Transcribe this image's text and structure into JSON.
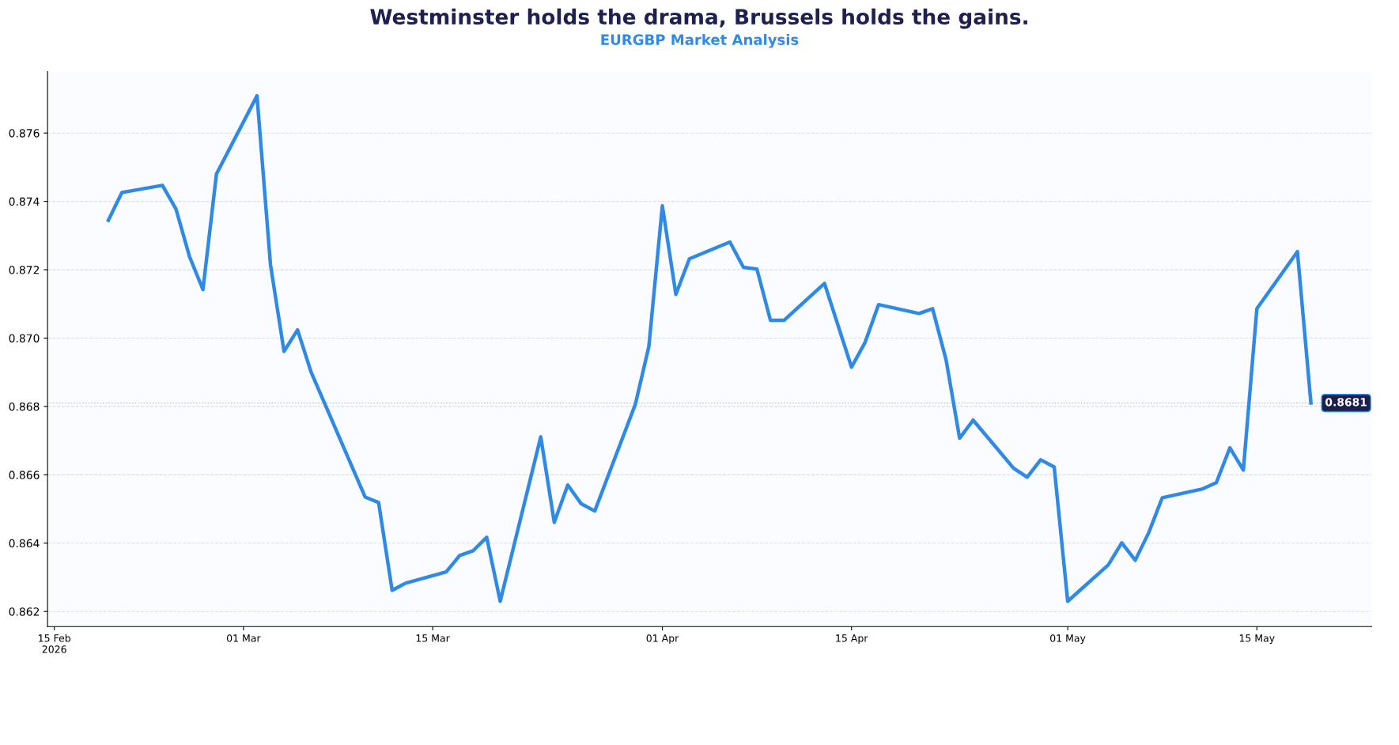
{
  "chart_data": {
    "type": "line",
    "title": "Westminster holds the drama, Brussels holds the gains.",
    "subtitle": "EURGBP Market Analysis",
    "x": [
      "2026-02-19",
      "2026-02-20",
      "2026-02-23",
      "2026-02-24",
      "2026-02-25",
      "2026-02-26",
      "2026-02-27",
      "2026-03-02",
      "2026-03-03",
      "2026-03-04",
      "2026-03-05",
      "2026-03-06",
      "2026-03-10",
      "2026-03-11",
      "2026-03-12",
      "2026-03-13",
      "2026-03-16",
      "2026-03-17",
      "2026-03-18",
      "2026-03-19",
      "2026-03-20",
      "2026-03-23",
      "2026-03-24",
      "2026-03-25",
      "2026-03-26",
      "2026-03-27",
      "2026-03-30",
      "2026-03-31",
      "2026-04-01",
      "2026-04-02",
      "2026-04-03",
      "2026-04-06",
      "2026-04-07",
      "2026-04-08",
      "2026-04-09",
      "2026-04-10",
      "2026-04-13",
      "2026-04-15",
      "2026-04-16",
      "2026-04-17",
      "2026-04-20",
      "2026-04-21",
      "2026-04-22",
      "2026-04-23",
      "2026-04-24",
      "2026-04-27",
      "2026-04-28",
      "2026-04-29",
      "2026-04-30",
      "2026-05-01",
      "2026-05-04",
      "2026-05-05",
      "2026-05-06",
      "2026-05-07",
      "2026-05-08",
      "2026-05-11",
      "2026-05-12",
      "2026-05-13",
      "2026-05-14",
      "2026-05-15",
      "2026-05-18",
      "2026-05-19"
    ],
    "series": [
      {
        "color": "#2e8ae6",
        "values": [
          0.87345,
          0.87426,
          0.87447,
          0.87378,
          0.87239,
          0.87142,
          0.8748,
          0.87709,
          0.87214,
          0.86961,
          0.87024,
          0.86901,
          0.86535,
          0.86519,
          0.86262,
          0.86283,
          0.86316,
          0.86364,
          0.86378,
          0.86417,
          0.8623,
          0.86711,
          0.86461,
          0.8657,
          0.86515,
          0.86494,
          0.86806,
          0.86975,
          0.87387,
          0.87128,
          0.87232,
          0.87281,
          0.87207,
          0.87202,
          0.87052,
          0.87052,
          0.8716,
          0.86915,
          0.86987,
          0.87098,
          0.87072,
          0.87086,
          0.86936,
          0.86707,
          0.8676,
          0.86619,
          0.86593,
          0.86644,
          0.86623,
          0.8623,
          0.86336,
          0.86401,
          0.8635,
          0.86431,
          0.86533,
          0.86559,
          0.86577,
          0.86679,
          0.86614,
          0.87086,
          0.87253,
          0.8681
        ]
      }
    ],
    "xlim": [
      "2026-02-14T12:00",
      "2026-05-23T12:00"
    ],
    "xticks": [
      {
        "value": "2026-02-15",
        "label": "15 Feb\n2026"
      },
      {
        "value": "2026-03-01",
        "label": "01 Mar"
      },
      {
        "value": "2026-03-15",
        "label": "15 Mar"
      },
      {
        "value": "2026-04-01",
        "label": "01 Apr"
      },
      {
        "value": "2026-04-15",
        "label": "15 Apr"
      },
      {
        "value": "2026-05-01",
        "label": "01 May"
      },
      {
        "value": "2026-05-15",
        "label": "15 May"
      }
    ],
    "ylim": [
      0.86156,
      0.8778
    ],
    "yticks": [
      {
        "value": 0.862,
        "label": "0.862"
      },
      {
        "value": 0.864,
        "label": "0.864"
      },
      {
        "value": 0.866,
        "label": "0.866"
      },
      {
        "value": 0.868,
        "label": "0.868"
      },
      {
        "value": 0.87,
        "label": "0.870"
      },
      {
        "value": 0.872,
        "label": "0.872"
      },
      {
        "value": 0.874,
        "label": "0.874"
      },
      {
        "value": 0.876,
        "label": "0.876"
      }
    ],
    "ref_lines": [
      {
        "axis": "y",
        "value": 0.8681,
        "label": "0.8681",
        "color": "#bbbbbb",
        "line_style": "dotted"
      }
    ],
    "grid": "y",
    "legend": false,
    "marker": "none",
    "line_style": "solid"
  }
}
